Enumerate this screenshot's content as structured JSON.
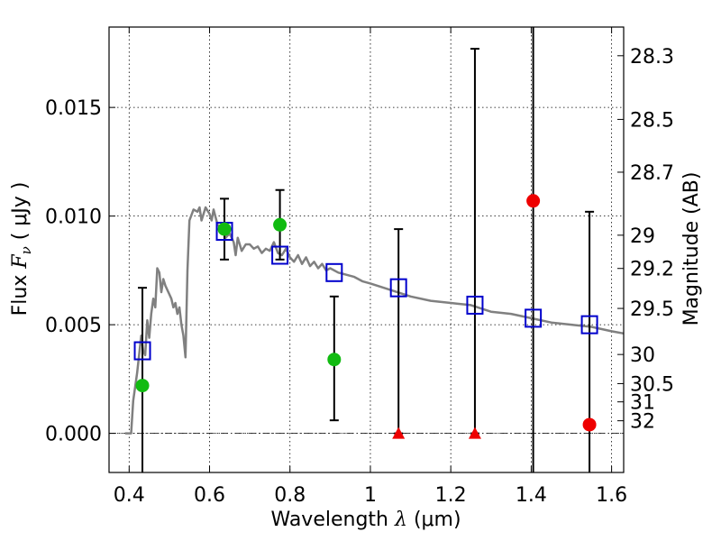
{
  "chart_data": {
    "type": "scatter",
    "title": "",
    "xlabel_text": "Wavelength",
    "xlabel_symbol": "λ",
    "xlabel_unit": "(μm)",
    "ylabel_text": "Flux",
    "ylabel_symbol": "F",
    "ylabel_subscript": "ν",
    "ylabel_unit": "( μJy )",
    "y2label": "Magnitude (AB)",
    "xlim": [
      0.35,
      1.63
    ],
    "ylim": [
      -0.0018,
      0.0187
    ],
    "grid": true,
    "x_ticks": [
      {
        "value": 0.4,
        "label": "0.4"
      },
      {
        "value": 0.6,
        "label": "0.6"
      },
      {
        "value": 0.8,
        "label": "0.8"
      },
      {
        "value": 1.0,
        "label": "1"
      },
      {
        "value": 1.2,
        "label": "1.2"
      },
      {
        "value": 1.4,
        "label": "1.4"
      },
      {
        "value": 1.6,
        "label": "1.6"
      }
    ],
    "y_ticks": [
      {
        "value": 0.0,
        "label": "0.000"
      },
      {
        "value": 0.005,
        "label": "0.005"
      },
      {
        "value": 0.01,
        "label": "0.010"
      },
      {
        "value": 0.015,
        "label": "0.015"
      }
    ],
    "magnitude_ticks": [
      {
        "label": "28.3",
        "flux": 0.01738
      },
      {
        "label": "28.5",
        "flux": 0.01445
      },
      {
        "label": "28.7",
        "flux": 0.01202
      },
      {
        "label": "29",
        "flux": 0.00912
      },
      {
        "label": "29.2",
        "flux": 0.00759
      },
      {
        "label": "29.5",
        "flux": 0.00575
      },
      {
        "label": "30",
        "flux": 0.00363
      },
      {
        "label": "30.5",
        "flux": 0.00229
      },
      {
        "label": "31",
        "flux": 0.00145
      },
      {
        "label": "32",
        "flux": 0.00058
      }
    ],
    "colors": {
      "sed": "#808080",
      "model_box": "#0000cc",
      "detection": "#11bb11",
      "nondetection": "#ee0000",
      "errorbar": "#000000"
    },
    "series": [
      {
        "kind": "line",
        "points": [
          [
            0.39,
            0.0
          ],
          [
            0.405,
            0.0
          ],
          [
            0.41,
            0.0015
          ],
          [
            0.42,
            0.0028
          ],
          [
            0.43,
            0.0045
          ],
          [
            0.435,
            0.0038
          ],
          [
            0.44,
            0.0036
          ],
          [
            0.445,
            0.0052
          ],
          [
            0.45,
            0.0044
          ],
          [
            0.455,
            0.0055
          ],
          [
            0.46,
            0.0062
          ],
          [
            0.465,
            0.0058
          ],
          [
            0.47,
            0.0076
          ],
          [
            0.475,
            0.0074
          ],
          [
            0.48,
            0.0065
          ],
          [
            0.485,
            0.0071
          ],
          [
            0.49,
            0.0068
          ],
          [
            0.495,
            0.0066
          ],
          [
            0.5,
            0.0064
          ],
          [
            0.505,
            0.0062
          ],
          [
            0.51,
            0.0058
          ],
          [
            0.515,
            0.006
          ],
          [
            0.52,
            0.0055
          ],
          [
            0.525,
            0.0058
          ],
          [
            0.53,
            0.005
          ],
          [
            0.535,
            0.0045
          ],
          [
            0.54,
            0.0035
          ],
          [
            0.545,
            0.0075
          ],
          [
            0.55,
            0.0098
          ],
          [
            0.56,
            0.0103
          ],
          [
            0.57,
            0.0102
          ],
          [
            0.575,
            0.0104
          ],
          [
            0.58,
            0.0098
          ],
          [
            0.59,
            0.0104
          ],
          [
            0.6,
            0.0101
          ],
          [
            0.605,
            0.0098
          ],
          [
            0.61,
            0.0103
          ],
          [
            0.62,
            0.0096
          ],
          [
            0.63,
            0.0094
          ],
          [
            0.64,
            0.009
          ],
          [
            0.65,
            0.0092
          ],
          [
            0.66,
            0.0088
          ],
          [
            0.665,
            0.0082
          ],
          [
            0.67,
            0.009
          ],
          [
            0.68,
            0.0084
          ],
          [
            0.69,
            0.0087
          ],
          [
            0.7,
            0.0087
          ],
          [
            0.71,
            0.0085
          ],
          [
            0.72,
            0.0086
          ],
          [
            0.73,
            0.0083
          ],
          [
            0.74,
            0.0085
          ],
          [
            0.75,
            0.0084
          ],
          [
            0.76,
            0.0088
          ],
          [
            0.77,
            0.0083
          ],
          [
            0.78,
            0.0082
          ],
          [
            0.79,
            0.0085
          ],
          [
            0.8,
            0.0081
          ],
          [
            0.81,
            0.0079
          ],
          [
            0.82,
            0.0082
          ],
          [
            0.83,
            0.0078
          ],
          [
            0.84,
            0.0081
          ],
          [
            0.85,
            0.0077
          ],
          [
            0.86,
            0.0079
          ],
          [
            0.87,
            0.0076
          ],
          [
            0.88,
            0.0078
          ],
          [
            0.89,
            0.0075
          ],
          [
            0.9,
            0.0076
          ],
          [
            0.92,
            0.0074
          ],
          [
            0.94,
            0.0073
          ],
          [
            0.96,
            0.0072
          ],
          [
            0.98,
            0.007
          ],
          [
            1.0,
            0.0069
          ],
          [
            1.05,
            0.0066
          ],
          [
            1.1,
            0.0063
          ],
          [
            1.15,
            0.0061
          ],
          [
            1.2,
            0.006
          ],
          [
            1.25,
            0.0059
          ],
          [
            1.3,
            0.0056
          ],
          [
            1.35,
            0.0055
          ],
          [
            1.4,
            0.0053
          ],
          [
            1.45,
            0.0051
          ],
          [
            1.5,
            0.005
          ],
          [
            1.55,
            0.0049
          ],
          [
            1.6,
            0.0047
          ],
          [
            1.63,
            0.0046
          ]
        ]
      },
      {
        "kind": "model_boxes",
        "points": [
          [
            0.433,
            0.0038
          ],
          [
            0.637,
            0.0093
          ],
          [
            0.775,
            0.0082
          ],
          [
            0.91,
            0.0074
          ],
          [
            1.07,
            0.0067
          ],
          [
            1.26,
            0.0059
          ],
          [
            1.405,
            0.0053
          ],
          [
            1.545,
            0.005
          ]
        ]
      },
      {
        "kind": "detections",
        "points": [
          {
            "x": 0.433,
            "y": 0.0022,
            "ylo": -0.0018,
            "yhi": 0.0067
          },
          {
            "x": 0.637,
            "y": 0.0094,
            "ylo": 0.008,
            "yhi": 0.0108
          },
          {
            "x": 0.775,
            "y": 0.0096,
            "ylo": 0.008,
            "yhi": 0.0112
          },
          {
            "x": 0.91,
            "y": 0.0034,
            "ylo": 0.0006,
            "yhi": 0.0063
          }
        ]
      },
      {
        "kind": "upper_limits",
        "points": [
          {
            "x": 1.07,
            "y": 0.0,
            "yhi": 0.0094
          },
          {
            "x": 1.26,
            "y": 0.0,
            "yhi": 0.0177
          }
        ]
      },
      {
        "kind": "nondetections",
        "points": [
          {
            "x": 1.405,
            "y": 0.0107,
            "ylo": -0.0018,
            "yhi": 0.0187
          },
          {
            "x": 1.545,
            "y": 0.0004,
            "ylo": -0.0018,
            "yhi": 0.0102
          }
        ]
      }
    ]
  }
}
